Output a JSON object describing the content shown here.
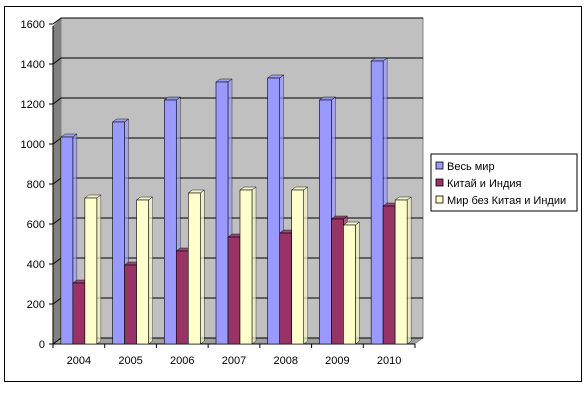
{
  "chart_data": {
    "type": "bar",
    "categories": [
      "2004",
      "2005",
      "2006",
      "2007",
      "2008",
      "2009",
      "2010"
    ],
    "series": [
      {
        "name": "Весь мир",
        "values": [
          1035,
          1110,
          1220,
          1310,
          1330,
          1220,
          1415
        ],
        "color": "#9999ff"
      },
      {
        "name": "Китай и Индия",
        "values": [
          305,
          395,
          465,
          535,
          555,
          625,
          690
        ],
        "color": "#993366"
      },
      {
        "name": "Мир без Китая и Индии",
        "values": [
          730,
          720,
          755,
          770,
          770,
          595,
          720
        ],
        "color": "#ffffcc"
      }
    ],
    "ylim": [
      0,
      1600
    ],
    "yticks": [
      0,
      200,
      400,
      600,
      800,
      1000,
      1200,
      1400,
      1600
    ],
    "ytick_labels": [
      "0",
      "200",
      "400",
      "600",
      "800",
      "1000",
      "1200",
      "1400",
      "1600"
    ],
    "grid": true,
    "legend_position": "right",
    "plot_background": "#c0c0c0",
    "title": "",
    "xlabel": "",
    "ylabel": ""
  }
}
